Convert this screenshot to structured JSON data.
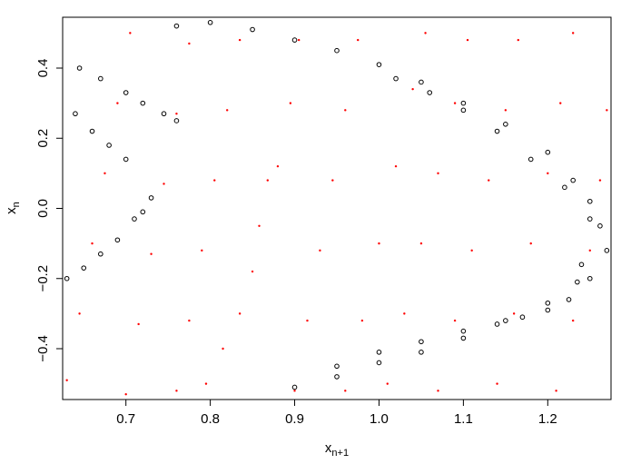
{
  "chart_data": {
    "type": "scatter",
    "title": "",
    "xlabel": {
      "base": "x",
      "subscript": "n+1"
    },
    "ylabel": {
      "base": "x",
      "subscript": "n"
    },
    "xlim": [
      0.625,
      1.275
    ],
    "ylim": [
      -0.545,
      0.545
    ],
    "x_ticks": [
      0.7,
      0.8,
      0.9,
      1.0,
      1.1,
      1.2
    ],
    "x_tick_labels": [
      "0.7",
      "0.8",
      "0.9",
      "1.0",
      "1.1",
      "1.2"
    ],
    "y_ticks": [
      -0.4,
      -0.2,
      0.0,
      0.2,
      0.4
    ],
    "y_tick_labels": [
      "−0.4",
      "−0.2",
      "0.0",
      "0.2",
      "0.4"
    ],
    "grid": false,
    "legend": "none",
    "series": [
      {
        "marker": "dot",
        "color": "#ff0000",
        "points": [
          [
            0.63,
            -0.49
          ],
          [
            0.645,
            -0.3
          ],
          [
            0.66,
            -0.1
          ],
          [
            0.675,
            0.1
          ],
          [
            0.69,
            0.3
          ],
          [
            0.705,
            0.5
          ],
          [
            0.7,
            -0.53
          ],
          [
            0.715,
            -0.33
          ],
          [
            0.73,
            -0.13
          ],
          [
            0.745,
            0.07
          ],
          [
            0.76,
            0.27
          ],
          [
            0.775,
            0.47
          ],
          [
            0.76,
            -0.52
          ],
          [
            0.775,
            -0.32
          ],
          [
            0.79,
            -0.12
          ],
          [
            0.805,
            0.08
          ],
          [
            0.82,
            0.28
          ],
          [
            0.835,
            0.48
          ],
          [
            0.795,
            -0.5
          ],
          [
            0.815,
            -0.4
          ],
          [
            0.835,
            -0.3
          ],
          [
            0.85,
            -0.18
          ],
          [
            0.858,
            -0.05
          ],
          [
            0.868,
            0.08
          ],
          [
            0.88,
            0.12
          ],
          [
            0.895,
            0.3
          ],
          [
            0.905,
            0.48
          ],
          [
            0.9,
            -0.52
          ],
          [
            0.915,
            -0.32
          ],
          [
            0.93,
            -0.12
          ],
          [
            0.945,
            0.08
          ],
          [
            0.96,
            0.28
          ],
          [
            0.975,
            0.48
          ],
          [
            0.96,
            -0.52
          ],
          [
            0.98,
            -0.32
          ],
          [
            1.0,
            -0.1
          ],
          [
            1.02,
            0.12
          ],
          [
            1.04,
            0.34
          ],
          [
            1.055,
            0.5
          ],
          [
            1.01,
            -0.5
          ],
          [
            1.03,
            -0.3
          ],
          [
            1.05,
            -0.1
          ],
          [
            1.07,
            0.1
          ],
          [
            1.09,
            0.3
          ],
          [
            1.105,
            0.48
          ],
          [
            1.07,
            -0.52
          ],
          [
            1.09,
            -0.32
          ],
          [
            1.11,
            -0.12
          ],
          [
            1.13,
            0.08
          ],
          [
            1.15,
            0.28
          ],
          [
            1.165,
            0.48
          ],
          [
            1.14,
            -0.5
          ],
          [
            1.16,
            -0.3
          ],
          [
            1.18,
            -0.1
          ],
          [
            1.2,
            0.1
          ],
          [
            1.215,
            0.3
          ],
          [
            1.23,
            0.5
          ],
          [
            1.21,
            -0.52
          ],
          [
            1.23,
            -0.32
          ],
          [
            1.25,
            -0.12
          ],
          [
            1.262,
            0.08
          ],
          [
            1.27,
            0.28
          ]
        ]
      },
      {
        "marker": "open-circle",
        "color": "#000000",
        "points": [
          [
            0.63,
            -0.2
          ],
          [
            0.65,
            -0.17
          ],
          [
            0.67,
            -0.13
          ],
          [
            0.69,
            -0.09
          ],
          [
            0.71,
            -0.03
          ],
          [
            0.72,
            -0.01
          ],
          [
            0.73,
            0.03
          ],
          [
            0.645,
            0.4
          ],
          [
            0.67,
            0.37
          ],
          [
            0.7,
            0.33
          ],
          [
            0.72,
            0.3
          ],
          [
            0.745,
            0.27
          ],
          [
            0.76,
            0.25
          ],
          [
            0.64,
            0.27
          ],
          [
            0.66,
            0.22
          ],
          [
            0.68,
            0.18
          ],
          [
            0.7,
            0.14
          ],
          [
            0.76,
            0.52
          ],
          [
            0.8,
            0.53
          ],
          [
            0.85,
            0.51
          ],
          [
            0.9,
            0.48
          ],
          [
            0.95,
            0.45
          ],
          [
            1.0,
            0.41
          ],
          [
            1.05,
            0.36
          ],
          [
            1.1,
            0.3
          ],
          [
            1.15,
            0.24
          ],
          [
            1.2,
            0.16
          ],
          [
            1.23,
            0.08
          ],
          [
            1.25,
            0.02
          ],
          [
            1.262,
            -0.05
          ],
          [
            1.27,
            -0.12
          ],
          [
            1.25,
            -0.2
          ],
          [
            1.225,
            -0.26
          ],
          [
            1.2,
            -0.29
          ],
          [
            1.17,
            -0.31
          ],
          [
            1.14,
            -0.33
          ],
          [
            1.1,
            -0.35
          ],
          [
            1.05,
            -0.38
          ],
          [
            1.0,
            -0.41
          ],
          [
            0.95,
            -0.45
          ],
          [
            0.9,
            -0.51
          ],
          [
            1.02,
            0.37
          ],
          [
            1.06,
            0.33
          ],
          [
            1.1,
            0.28
          ],
          [
            1.14,
            0.22
          ],
          [
            1.18,
            0.14
          ],
          [
            1.22,
            0.06
          ],
          [
            1.25,
            -0.03
          ],
          [
            1.24,
            -0.16
          ],
          [
            0.95,
            -0.48
          ],
          [
            1.0,
            -0.44
          ],
          [
            1.05,
            -0.41
          ],
          [
            1.1,
            -0.37
          ],
          [
            1.15,
            -0.32
          ],
          [
            1.2,
            -0.27
          ],
          [
            1.235,
            -0.21
          ]
        ]
      }
    ]
  }
}
